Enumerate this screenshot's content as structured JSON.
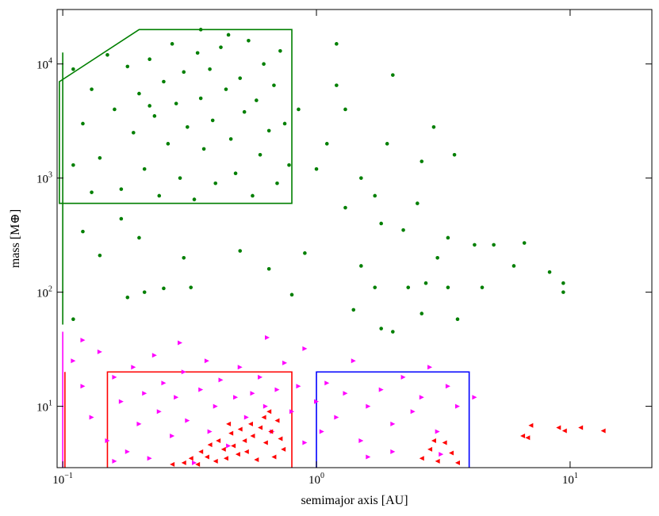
{
  "chart_data": {
    "type": "scatter",
    "xlabel": "semimajor axis [AU]",
    "ylabel": "mass [M⊕]",
    "xscale": "log",
    "yscale": "log",
    "xlim": [
      0.095,
      21
    ],
    "ylim": [
      2.9,
      30000
    ],
    "xticks": [
      {
        "value": 0.1,
        "label": "10",
        "exponent": "−1"
      },
      {
        "value": 1,
        "label": "10",
        "exponent": "0"
      },
      {
        "value": 10,
        "label": "10",
        "exponent": "1"
      }
    ],
    "yticks": [
      {
        "value": 10,
        "label": "10",
        "exponent": "1"
      },
      {
        "value": 100,
        "label": "10",
        "exponent": "2"
      },
      {
        "value": 1000,
        "label": "10",
        "exponent": "3"
      },
      {
        "value": 10000,
        "label": "10",
        "exponent": "4"
      }
    ],
    "regions": [
      {
        "color": "#007f00",
        "closed": true,
        "x": [
          0.097,
          0.2,
          0.8,
          0.8,
          0.097
        ],
        "y": [
          7000,
          20000,
          20000,
          600,
          600
        ]
      },
      {
        "color": "#ff0000",
        "closed": false,
        "x": [
          0.15,
          0.15,
          0.8,
          0.8
        ],
        "y": [
          1,
          20,
          20,
          1
        ]
      },
      {
        "color": "#0000ff",
        "closed": false,
        "x": [
          1,
          1,
          4,
          4
        ],
        "y": [
          1,
          20,
          20,
          1
        ]
      },
      {
        "color": "#007f00",
        "closed": false,
        "x": [
          0.1,
          0.1
        ],
        "y": [
          52,
          12600
        ]
      },
      {
        "color": "#ff00ff",
        "closed": false,
        "x": [
          0.1,
          0.1
        ],
        "y": [
          1,
          45
        ]
      },
      {
        "color": "#ff0000",
        "closed": false,
        "x": [
          0.102,
          0.102
        ],
        "y": [
          1,
          20
        ]
      }
    ],
    "series": [
      {
        "color": "#007f00",
        "marker": "o",
        "x": [
          1.2,
          1.2,
          1.3,
          1.1,
          0.85,
          1.9,
          2.0,
          2.9,
          3.5,
          2.6,
          1.5,
          1.0,
          1.7,
          2.5,
          1.3,
          1.8,
          2.2,
          3.3,
          4.2,
          5.0,
          6.6,
          6.0,
          8.3,
          9.4,
          9.4,
          3.0,
          2.7,
          2.3,
          3.3,
          4.5,
          1.5,
          1.7,
          0.9,
          0.65,
          0.5,
          0.3,
          0.2,
          0.14,
          0.12,
          0.17,
          0.21,
          0.18,
          0.32,
          0.8,
          1.4,
          0.11,
          3.6,
          2.6,
          2.0,
          1.8,
          0.25,
          0.11,
          0.12,
          0.13,
          0.14,
          0.15,
          0.16,
          0.17,
          0.18,
          0.19,
          0.2,
          0.21,
          0.22,
          0.23,
          0.24,
          0.25,
          0.26,
          0.27,
          0.28,
          0.29,
          0.3,
          0.31,
          0.33,
          0.34,
          0.35,
          0.36,
          0.38,
          0.39,
          0.4,
          0.42,
          0.44,
          0.46,
          0.48,
          0.5,
          0.52,
          0.54,
          0.56,
          0.58,
          0.6,
          0.62,
          0.65,
          0.68,
          0.7,
          0.72,
          0.75,
          0.78,
          0.13,
          0.45,
          0.35,
          0.11,
          0.22
        ],
        "values": [
          15000,
          6500,
          4000,
          2000,
          4000,
          2000,
          8000,
          2800,
          1600,
          1400,
          1000,
          1200,
          700,
          600,
          550,
          400,
          350,
          300,
          260,
          260,
          270,
          170,
          150,
          120,
          100,
          200,
          120,
          110,
          110,
          110,
          170,
          110,
          220,
          160,
          230,
          200,
          300,
          210,
          340,
          440,
          100,
          90,
          110,
          95,
          70,
          58,
          58,
          65,
          45,
          48,
          108,
          9000,
          3000,
          6000,
          1500,
          12000,
          4000,
          800,
          9500,
          2500,
          5500,
          1200,
          11000,
          3500,
          700,
          7000,
          2000,
          15000,
          4500,
          1000,
          8500,
          2800,
          650,
          12500,
          5000,
          1800,
          9000,
          3200,
          900,
          14000,
          6000,
          2200,
          1100,
          7500,
          3800,
          16000,
          700,
          4800,
          1600,
          10000,
          2600,
          6500,
          900,
          13000,
          3000,
          1300,
          750,
          18000,
          20000,
          1300,
          4300
        ]
      },
      {
        "color": "#ff00ff",
        "marker": ">",
        "x": [
          0.11,
          0.12,
          0.13,
          0.14,
          0.15,
          0.16,
          0.17,
          0.18,
          0.19,
          0.2,
          0.21,
          0.22,
          0.23,
          0.24,
          0.25,
          0.27,
          0.28,
          0.3,
          0.31,
          0.33,
          0.35,
          0.37,
          0.38,
          0.4,
          0.42,
          0.45,
          0.48,
          0.5,
          0.53,
          0.56,
          0.6,
          0.63,
          0.67,
          0.7,
          0.75,
          0.8,
          0.85,
          0.9,
          1.0,
          1.05,
          1.1,
          1.2,
          1.3,
          1.4,
          1.5,
          1.6,
          1.8,
          2.0,
          2.2,
          2.4,
          2.6,
          2.8,
          3.0,
          3.3,
          3.6,
          4.2,
          0.29,
          0.64,
          0.12,
          0.9,
          2.0,
          0.16,
          1.6,
          3.1
        ],
        "values": [
          25,
          15,
          8,
          30,
          5,
          18,
          11,
          4,
          22,
          7,
          13,
          3.5,
          28,
          9,
          16,
          5.5,
          12,
          20,
          7.5,
          3.2,
          14,
          25,
          6,
          10,
          17,
          4.5,
          12,
          22,
          8,
          13,
          18,
          10,
          6,
          14,
          24,
          9,
          15,
          32,
          11,
          6,
          16,
          8,
          13,
          25,
          5,
          10,
          14,
          7,
          18,
          9,
          12,
          22,
          6,
          15,
          10,
          12,
          36,
          40,
          38,
          4.8,
          4,
          3.3,
          3.6,
          3.8
        ]
      },
      {
        "color": "#ff0000",
        "marker": "<",
        "x": [
          0.3,
          0.32,
          0.34,
          0.35,
          0.37,
          0.38,
          0.4,
          0.41,
          0.43,
          0.44,
          0.46,
          0.47,
          0.49,
          0.5,
          0.52,
          0.53,
          0.55,
          0.56,
          0.58,
          0.6,
          0.62,
          0.63,
          0.65,
          0.66,
          0.68,
          0.7,
          0.72,
          0.74,
          0.27,
          0.45,
          2.6,
          2.8,
          3.0,
          3.2,
          3.4,
          3.6,
          2.9,
          6.5,
          6.8,
          7.0,
          9.0,
          9.5,
          11,
          13.5
        ],
        "values": [
          3.2,
          3.5,
          3.1,
          4,
          3.6,
          4.6,
          3.3,
          5,
          4.2,
          3.5,
          5.8,
          4.5,
          3.8,
          6.3,
          5,
          4,
          7,
          5.5,
          3.4,
          6.5,
          8,
          4.8,
          9,
          6,
          3.6,
          7.5,
          5.2,
          4.2,
          3.1,
          7,
          3.5,
          4.2,
          3.3,
          4.8,
          3.9,
          3.2,
          5,
          5.5,
          5.3,
          6.8,
          6.5,
          6.1,
          6.5,
          6.1
        ]
      }
    ]
  }
}
